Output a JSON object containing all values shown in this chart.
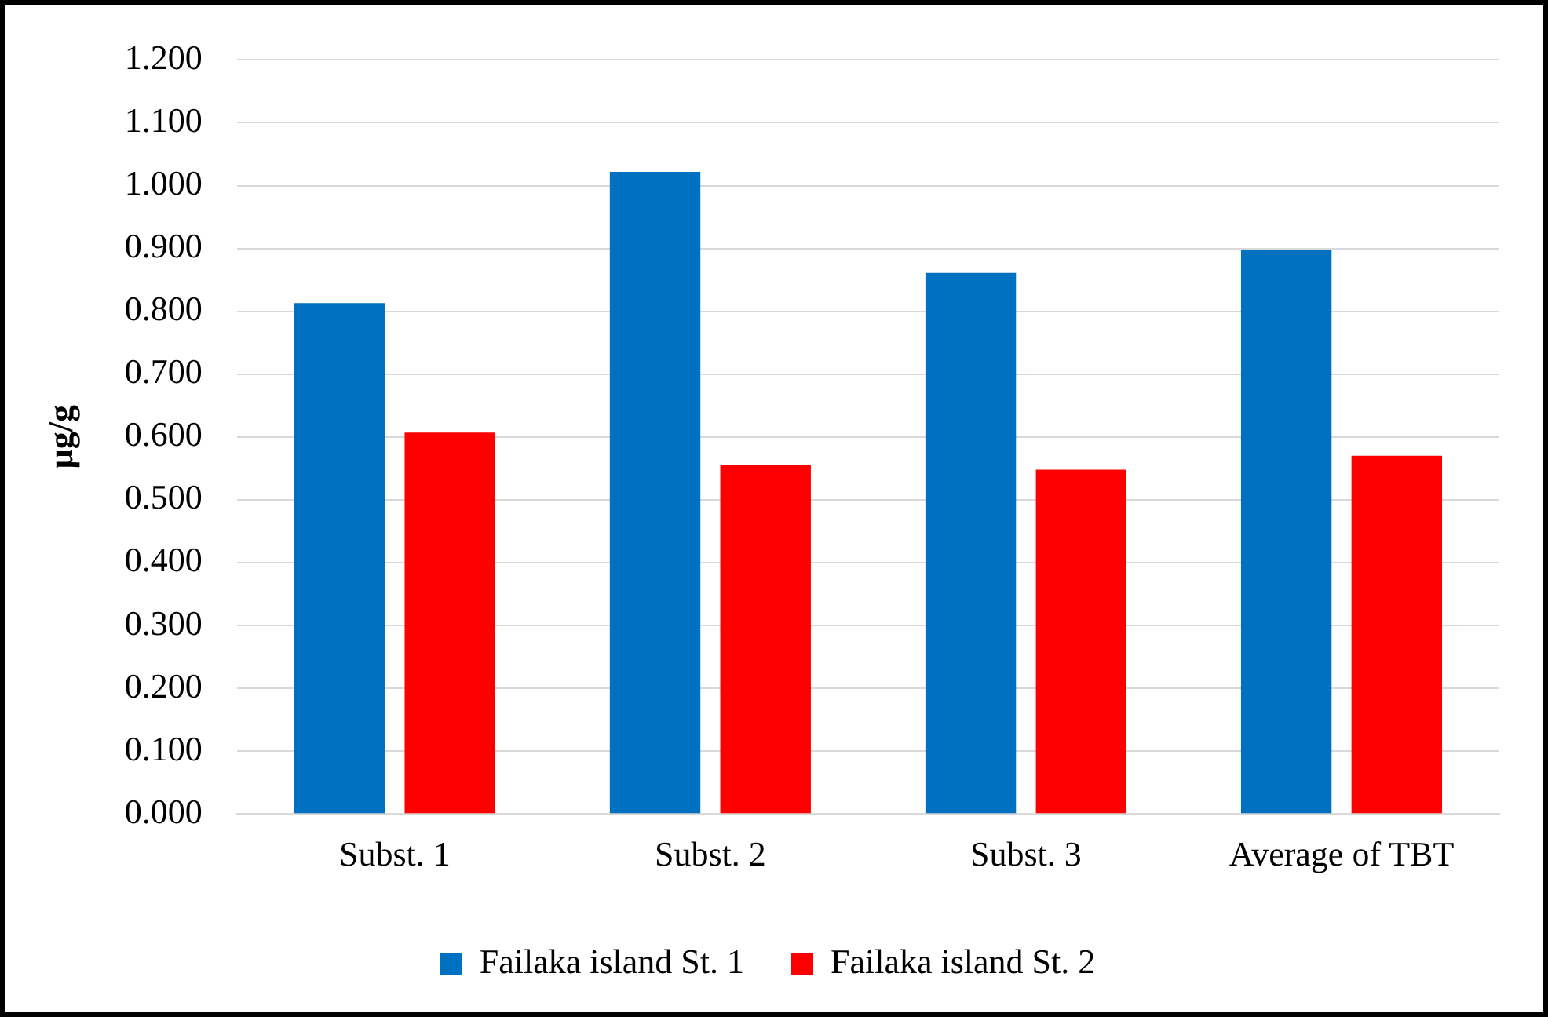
{
  "chart_data": {
    "type": "bar",
    "ylabel": "µg/g",
    "categories": [
      "Subst. 1",
      "Subst. 2",
      "Subst. 3",
      "Average of TBT"
    ],
    "series": [
      {
        "name": "Failaka island St. 1",
        "color": "#0070c0",
        "values": [
          0.813,
          1.022,
          0.861,
          0.898
        ]
      },
      {
        "name": "Failaka island St. 2",
        "color": "#ff0000",
        "values": [
          0.607,
          0.556,
          0.548,
          0.57
        ]
      }
    ],
    "ylim": [
      0,
      1.2
    ],
    "yticks": [
      {
        "value": 0,
        "label": "0.000"
      },
      {
        "value": 0.1,
        "label": "0.100"
      },
      {
        "value": 0.2,
        "label": "0.200"
      },
      {
        "value": 0.3,
        "label": "0.300"
      },
      {
        "value": 0.4,
        "label": "0.400"
      },
      {
        "value": 0.5,
        "label": "0.500"
      },
      {
        "value": 0.6,
        "label": "0.600"
      },
      {
        "value": 0.7,
        "label": "0.700"
      },
      {
        "value": 0.8,
        "label": "0.800"
      },
      {
        "value": 0.9,
        "label": "0.900"
      },
      {
        "value": 1.0,
        "label": "1.000"
      },
      {
        "value": 1.1,
        "label": "1.100"
      },
      {
        "value": 1.2,
        "label": "1.200"
      }
    ],
    "grid": "y",
    "legend": "bottom"
  }
}
